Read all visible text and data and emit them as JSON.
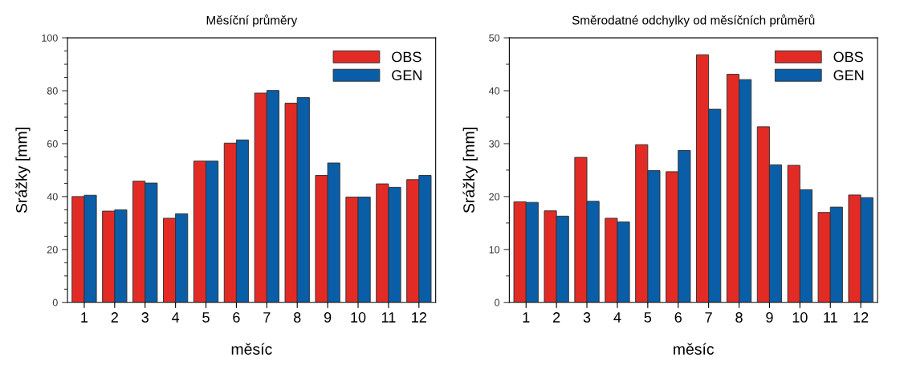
{
  "chart_data": [
    {
      "type": "bar",
      "title": "Měsíční průměry",
      "xlabel": "měsíc",
      "ylabel": "Srážky [mm]",
      "categories": [
        "1",
        "2",
        "3",
        "4",
        "5",
        "6",
        "7",
        "8",
        "9",
        "10",
        "11",
        "12"
      ],
      "series": [
        {
          "name": "OBS",
          "color": "#e32b26",
          "values": [
            40,
            34.5,
            45.8,
            31.8,
            53.4,
            60.2,
            79.1,
            75.3,
            48,
            39.8,
            44.8,
            46.4
          ]
        },
        {
          "name": "GEN",
          "color": "#0a5ea8",
          "values": [
            40.5,
            35,
            45.1,
            33.5,
            53.4,
            61.4,
            80.1,
            77.4,
            52.7,
            39.8,
            43.5,
            48
          ]
        }
      ],
      "ylim": [
        0,
        100
      ],
      "yticks": [
        0,
        20,
        40,
        60,
        80,
        100
      ],
      "grid": false,
      "legend": "top right"
    },
    {
      "type": "bar",
      "title": "Směrodatné odchylky od měsíčních průměrů",
      "xlabel": "měsíc",
      "ylabel": "Srážky [mm]",
      "categories": [
        "1",
        "2",
        "3",
        "4",
        "5",
        "6",
        "7",
        "8",
        "9",
        "10",
        "11",
        "12"
      ],
      "series": [
        {
          "name": "OBS",
          "color": "#e32b26",
          "values": [
            19,
            17.3,
            27.4,
            15.9,
            29.8,
            24.7,
            46.8,
            43.1,
            33.2,
            25.9,
            17,
            20.3
          ]
        },
        {
          "name": "GEN",
          "color": "#0a5ea8",
          "values": [
            18.9,
            16.3,
            19.1,
            15.2,
            24.9,
            28.7,
            36.5,
            42.1,
            26,
            21.3,
            18,
            19.8
          ]
        }
      ],
      "ylim": [
        0,
        50
      ],
      "yticks": [
        0,
        10,
        20,
        30,
        40,
        50
      ],
      "grid": false,
      "legend": "top right"
    }
  ]
}
